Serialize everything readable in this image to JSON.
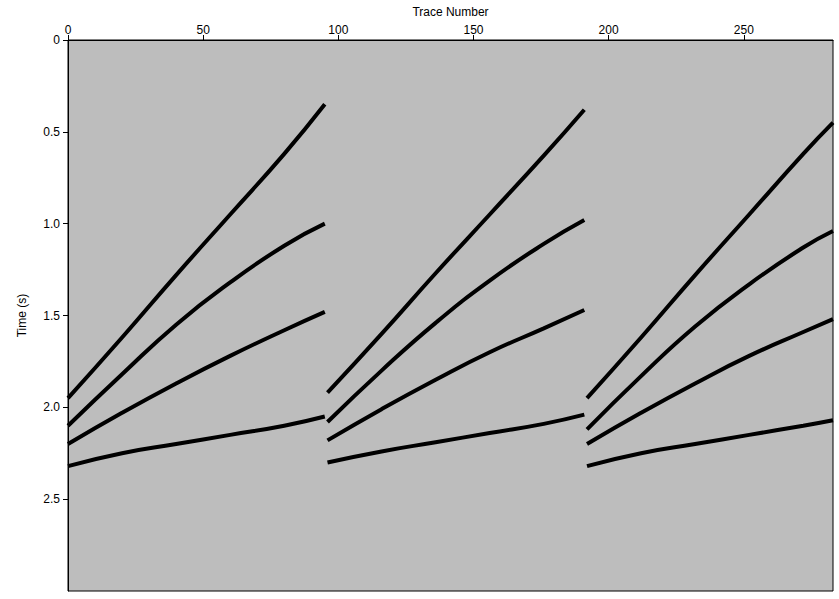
{
  "chart_data": {
    "type": "line",
    "x_label": "Trace Number",
    "y_label": "Time (s)",
    "xlim": [
      0,
      283
    ],
    "xticks": [
      0,
      50,
      100,
      150,
      200,
      250
    ],
    "ylim": [
      0,
      3.0
    ],
    "yticks": [
      0,
      0.5,
      {
        "value": 1,
        "label": "1.0"
      },
      1.5,
      {
        "value": 2,
        "label": "2.0"
      },
      2.5
    ],
    "grid": false,
    "series": [
      {
        "color": "#000000",
        "x": [
          0,
          20,
          40,
          60,
          80,
          95
        ],
        "values": [
          1.95,
          1.62,
          1.28,
          0.95,
          0.62,
          0.35
        ]
      },
      {
        "color": "#000000",
        "x": [
          0,
          20,
          40,
          60,
          80,
          95
        ],
        "values": [
          2.1,
          1.82,
          1.55,
          1.32,
          1.12,
          1.0
        ]
      },
      {
        "color": "#000000",
        "x": [
          0,
          20,
          40,
          60,
          80,
          95
        ],
        "values": [
          2.2,
          2.03,
          1.87,
          1.72,
          1.58,
          1.48
        ]
      },
      {
        "color": "#000000",
        "x": [
          0,
          20,
          40,
          60,
          80,
          95
        ],
        "values": [
          2.32,
          2.25,
          2.2,
          2.15,
          2.1,
          2.05
        ]
      },
      {
        "color": "#000000",
        "x": [
          96,
          116,
          136,
          156,
          176,
          191
        ],
        "values": [
          1.92,
          1.6,
          1.27,
          0.95,
          0.63,
          0.38
        ]
      },
      {
        "color": "#000000",
        "x": [
          96,
          116,
          136,
          156,
          176,
          191
        ],
        "values": [
          2.08,
          1.8,
          1.54,
          1.31,
          1.11,
          0.98
        ]
      },
      {
        "color": "#000000",
        "x": [
          96,
          116,
          136,
          156,
          176,
          191
        ],
        "values": [
          2.18,
          2.01,
          1.85,
          1.7,
          1.57,
          1.47
        ]
      },
      {
        "color": "#000000",
        "x": [
          96,
          116,
          136,
          156,
          176,
          191
        ],
        "values": [
          2.3,
          2.24,
          2.19,
          2.14,
          2.09,
          2.04
        ]
      },
      {
        "color": "#000000",
        "x": [
          192,
          212,
          232,
          252,
          272,
          283
        ],
        "values": [
          1.95,
          1.62,
          1.28,
          0.95,
          0.62,
          0.45
        ]
      },
      {
        "color": "#000000",
        "x": [
          192,
          212,
          232,
          252,
          272,
          283
        ],
        "values": [
          2.12,
          1.83,
          1.56,
          1.33,
          1.13,
          1.04
        ]
      },
      {
        "color": "#000000",
        "x": [
          192,
          212,
          232,
          252,
          272,
          283
        ],
        "values": [
          2.2,
          2.03,
          1.87,
          1.72,
          1.59,
          1.52
        ]
      },
      {
        "color": "#000000",
        "x": [
          192,
          212,
          232,
          252,
          272,
          283
        ],
        "values": [
          2.32,
          2.25,
          2.2,
          2.15,
          2.1,
          2.07
        ]
      }
    ]
  }
}
